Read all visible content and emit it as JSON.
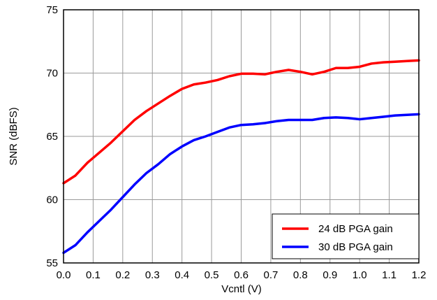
{
  "chart_data": {
    "type": "line",
    "title": "",
    "xlabel": "Vcntl (V)",
    "ylabel": "SNR (dBFS)",
    "xlim": [
      0.0,
      1.2
    ],
    "ylim": [
      55,
      75
    ],
    "xticks": [
      0.0,
      0.1,
      0.2,
      0.3,
      0.4,
      0.5,
      0.6,
      0.7,
      0.8,
      0.9,
      1.0,
      1.1,
      1.2
    ],
    "xtick_labels": [
      "0.0",
      "0.1",
      "0.2",
      "0.3",
      "0.4",
      "0.5",
      "0.6",
      "0.7",
      "0.8",
      "0.9",
      "1.0",
      "1.1",
      "1.2"
    ],
    "yticks": [
      55,
      60,
      65,
      70,
      75
    ],
    "ytick_labels": [
      "55",
      "60",
      "65",
      "70",
      "75"
    ],
    "grid": true,
    "legend_position": "bottom-right",
    "series": [
      {
        "name": "24 dB PGA gain",
        "color": "#ff0000",
        "x": [
          0.0,
          0.04,
          0.08,
          0.12,
          0.16,
          0.2,
          0.24,
          0.28,
          0.32,
          0.36,
          0.4,
          0.44,
          0.48,
          0.52,
          0.56,
          0.6,
          0.64,
          0.68,
          0.72,
          0.76,
          0.8,
          0.84,
          0.88,
          0.92,
          0.96,
          1.0,
          1.04,
          1.08,
          1.12,
          1.16,
          1.2
        ],
        "y": [
          61.3,
          61.9,
          62.9,
          63.7,
          64.5,
          65.4,
          66.3,
          67.0,
          67.6,
          68.2,
          68.75,
          69.1,
          69.25,
          69.45,
          69.75,
          69.95,
          69.95,
          69.9,
          70.1,
          70.25,
          70.1,
          69.9,
          70.1,
          70.4,
          70.4,
          70.5,
          70.75,
          70.85,
          70.9,
          70.95,
          71.0
        ]
      },
      {
        "name": "30 dB PGA gain",
        "color": "#0000ff",
        "x": [
          0.0,
          0.04,
          0.08,
          0.12,
          0.16,
          0.2,
          0.24,
          0.28,
          0.32,
          0.36,
          0.4,
          0.44,
          0.48,
          0.52,
          0.56,
          0.6,
          0.64,
          0.68,
          0.72,
          0.76,
          0.8,
          0.84,
          0.88,
          0.92,
          0.96,
          1.0,
          1.04,
          1.08,
          1.12,
          1.16,
          1.2
        ],
        "y": [
          55.8,
          56.4,
          57.4,
          58.3,
          59.2,
          60.2,
          61.2,
          62.1,
          62.8,
          63.6,
          64.2,
          64.7,
          65.0,
          65.35,
          65.7,
          65.9,
          65.95,
          66.05,
          66.2,
          66.3,
          66.3,
          66.3,
          66.45,
          66.5,
          66.45,
          66.35,
          66.45,
          66.55,
          66.65,
          66.7,
          66.75
        ]
      }
    ]
  }
}
